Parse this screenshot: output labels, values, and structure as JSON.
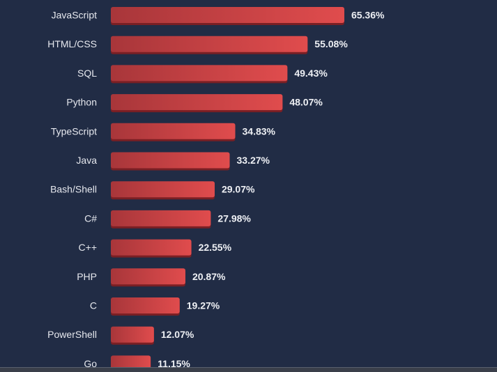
{
  "chart_data": {
    "type": "bar",
    "orientation": "horizontal",
    "categories": [
      "JavaScript",
      "HTML/CSS",
      "SQL",
      "Python",
      "TypeScript",
      "Java",
      "Bash/Shell",
      "C#",
      "C++",
      "PHP",
      "C",
      "PowerShell",
      "Go"
    ],
    "values": [
      65.36,
      55.08,
      49.43,
      48.07,
      34.83,
      33.27,
      29.07,
      27.98,
      22.55,
      20.87,
      19.27,
      12.07,
      11.15
    ],
    "value_labels": [
      "65.36%",
      "55.08%",
      "49.43%",
      "48.07%",
      "34.83%",
      "33.27%",
      "29.07%",
      "27.98%",
      "22.55%",
      "20.87%",
      "19.27%",
      "12.07%",
      "11.15%"
    ],
    "title": "",
    "xlabel": "",
    "ylabel": "",
    "grid": false,
    "colors": {
      "background": "#212c45",
      "bar_dark": "#a8363a",
      "bar_light": "#e04c4d",
      "bar_shadow": "#7a1f24",
      "label": "#e6e8ee"
    }
  }
}
